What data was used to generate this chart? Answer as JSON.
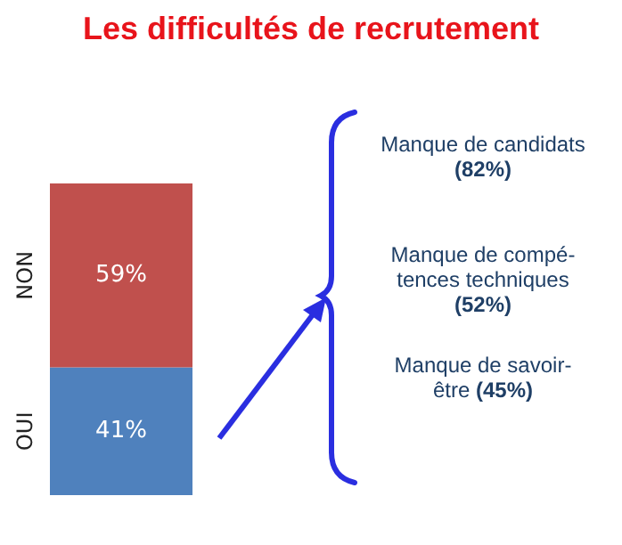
{
  "chart_data": {
    "type": "bar",
    "title": "Les difficultés de recrutement",
    "categories": [
      null
    ],
    "stacked": true,
    "series": [
      {
        "name": "OUI",
        "color": "#4f81bd",
        "values": [
          41
        ],
        "value_labels": [
          "41%"
        ]
      },
      {
        "name": "NON",
        "color": "#c0504d",
        "values": [
          59
        ],
        "value_labels": [
          "59%"
        ]
      }
    ],
    "annotations": [
      "Manque de candidats\n(82%)",
      "Manque de compé-\ntences techniques\n(52%)",
      "Manque de savoir-\nêtre (45%)"
    ]
  }
}
